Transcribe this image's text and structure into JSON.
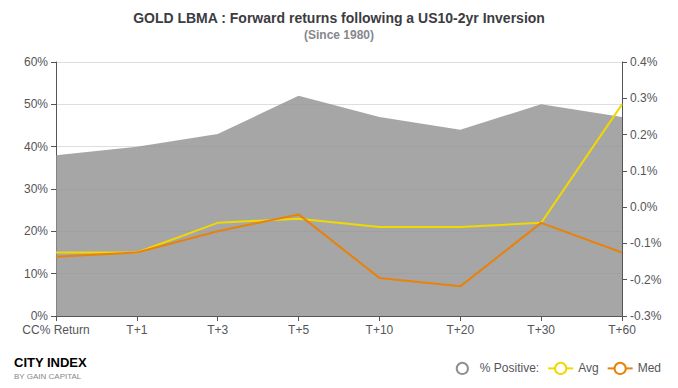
{
  "chart_data": {
    "type": "line",
    "title": "GOLD LBMA : Forward returns following a US10-2yr Inversion",
    "subtitle": "(Since 1980)",
    "categories": [
      "CC% Return",
      "T+1",
      "T+3",
      "T+5",
      "T+10",
      "T+20",
      "T+30",
      "T+60"
    ],
    "series": [
      {
        "name": "% Positive:",
        "type": "area",
        "color": "#909090",
        "values": [
          0.38,
          0.4,
          0.43,
          0.52,
          0.47,
          0.44,
          0.5,
          0.47
        ]
      },
      {
        "name": "Avg",
        "type": "line",
        "color": "#f0d800",
        "values": [
          0.15,
          0.15,
          0.22,
          0.23,
          0.21,
          0.21,
          0.22,
          0.5
        ]
      },
      {
        "name": "Med",
        "type": "line",
        "color": "#e8820a",
        "values": [
          0.14,
          0.15,
          0.2,
          0.24,
          0.09,
          0.07,
          0.22,
          0.15
        ]
      }
    ],
    "ylim": [
      0.0,
      0.6
    ],
    "yticks": [
      {
        "value": 0.0,
        "label": "0%"
      },
      {
        "value": 0.1,
        "label": "10%"
      },
      {
        "value": 0.2,
        "label": "20%"
      },
      {
        "value": 0.3,
        "label": "30%"
      },
      {
        "value": 0.4,
        "label": "40%"
      },
      {
        "value": 0.5,
        "label": "50%"
      },
      {
        "value": 0.6,
        "label": "60%"
      }
    ],
    "y2lim": [
      -0.3,
      0.4
    ],
    "y2ticks": [
      {
        "value": -0.3,
        "label": "-0.3%"
      },
      {
        "value": -0.2,
        "label": "-0.2%"
      },
      {
        "value": -0.1,
        "label": "-0.1%"
      },
      {
        "value": 0.0,
        "label": "0.0%"
      },
      {
        "value": 0.1,
        "label": "0.1%"
      },
      {
        "value": 0.2,
        "label": "0.2%"
      },
      {
        "value": 0.3,
        "label": "0.3%"
      },
      {
        "value": 0.4,
        "label": "0.4%"
      }
    ],
    "grid": true,
    "legend": "lower right",
    "annotations": [
      "CITY",
      "INDEX",
      "BY GAIN CAPITAL"
    ]
  }
}
